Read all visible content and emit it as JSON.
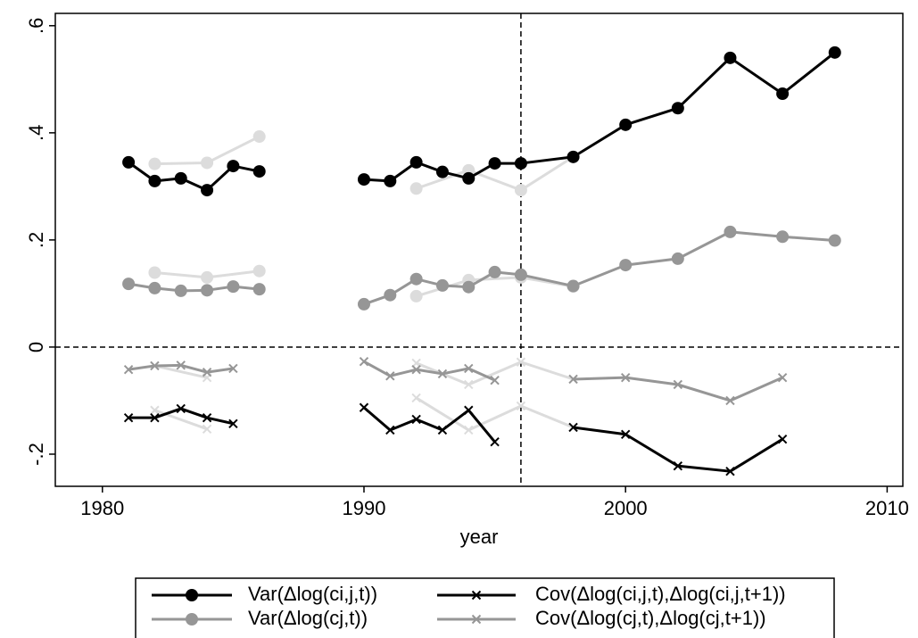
{
  "chart_data": {
    "type": "line",
    "xlabel": "year",
    "xlim": [
      1978.2,
      2010.6
    ],
    "xticks": [
      1980,
      1990,
      2000,
      2010
    ],
    "ylim": [
      -0.26,
      0.623
    ],
    "yticks": [
      {
        "value": -0.2,
        "label": "-.2"
      },
      0,
      {
        "value": 0.2,
        "label": ".2"
      },
      {
        "value": 0.4,
        "label": ".4"
      },
      {
        "value": 0.6,
        "label": ".6"
      }
    ],
    "xline": 1996,
    "yline": 0,
    "series": [
      {
        "name": "Var(Δlog(ci,j,t))",
        "color": "#000000",
        "marker": "circle",
        "x": [
          1981,
          1982,
          1983,
          1984,
          1985,
          1986,
          1988,
          1990,
          1991,
          1992,
          1993,
          1994,
          1995,
          1996,
          1998,
          2000,
          2002,
          2004,
          2006,
          2008
        ],
        "values": [
          0.345,
          0.31,
          0.315,
          0.293,
          0.338,
          0.328,
          null,
          0.313,
          0.31,
          0.345,
          0.327,
          0.315,
          0.343,
          0.343,
          0.355,
          0.415,
          0.446,
          0.54,
          0.473,
          0.55
        ]
      },
      {
        "name": "Cov(Δlog(ci,j,t),Δlog(ci,j,t+1))",
        "color": "#000000",
        "marker": "x",
        "x": [
          1981,
          1982,
          1983,
          1984,
          1985,
          1988,
          1990,
          1991,
          1992,
          1993,
          1994,
          1995,
          1996,
          1998,
          2000,
          2002,
          2004,
          2006
        ],
        "values": [
          -0.132,
          -0.132,
          -0.115,
          -0.132,
          -0.143,
          null,
          -0.113,
          -0.155,
          -0.135,
          -0.155,
          -0.118,
          -0.177,
          null,
          -0.15,
          -0.163,
          -0.222,
          -0.232,
          -0.172
        ]
      },
      {
        "name": "Var(Δlog(cj,t))",
        "color": "#969696",
        "marker": "circle",
        "x": [
          1981,
          1982,
          1983,
          1984,
          1985,
          1986,
          1988,
          1990,
          1991,
          1992,
          1993,
          1994,
          1995,
          1996,
          1998,
          2000,
          2002,
          2004,
          2006,
          2008
        ],
        "values": [
          0.118,
          0.11,
          0.105,
          0.106,
          0.113,
          0.108,
          null,
          0.08,
          0.097,
          0.127,
          0.115,
          0.112,
          0.14,
          0.135,
          0.114,
          0.153,
          0.165,
          0.215,
          0.206,
          0.199
        ]
      },
      {
        "name": "Cov(Δlog(cj,t),Δlog(cj,t+1))",
        "color": "#969696",
        "marker": "x",
        "x": [
          1981,
          1982,
          1983,
          1984,
          1985,
          1988,
          1990,
          1991,
          1992,
          1993,
          1994,
          1995,
          1996,
          1998,
          2000,
          2002,
          2004,
          2006
        ],
        "values": [
          -0.042,
          -0.035,
          -0.034,
          -0.047,
          -0.04,
          null,
          -0.027,
          -0.054,
          -0.042,
          -0.05,
          -0.04,
          -0.062,
          null,
          -0.06,
          -0.057,
          -0.07,
          -0.1,
          -0.057
        ]
      },
      {
        "color": "#dcdcdc",
        "marker": "circle",
        "x": [
          1982,
          1984,
          1986,
          1988,
          1992,
          1994,
          1996,
          1998
        ],
        "values": [
          0.342,
          0.344,
          0.393,
          null,
          0.296,
          0.33,
          0.293,
          0.355
        ]
      },
      {
        "color": "#dcdcdc",
        "marker": "circle",
        "x": [
          1982,
          1984,
          1986,
          1988,
          1992,
          1994,
          1996,
          1998
        ],
        "values": [
          0.139,
          0.13,
          0.142,
          null,
          0.095,
          0.125,
          0.13,
          0.113
        ]
      },
      {
        "color": "#dcdcdc",
        "marker": "x",
        "x": [
          1982,
          1984,
          1988,
          1992,
          1994,
          1996,
          1998
        ],
        "values": [
          -0.118,
          -0.153,
          null,
          -0.095,
          -0.155,
          -0.11,
          -0.15
        ]
      },
      {
        "color": "#dcdcdc",
        "marker": "x",
        "x": [
          1982,
          1984,
          1988,
          1992,
          1994,
          1996,
          1998
        ],
        "values": [
          -0.035,
          -0.057,
          null,
          -0.03,
          -0.07,
          -0.028,
          -0.06
        ]
      }
    ]
  }
}
